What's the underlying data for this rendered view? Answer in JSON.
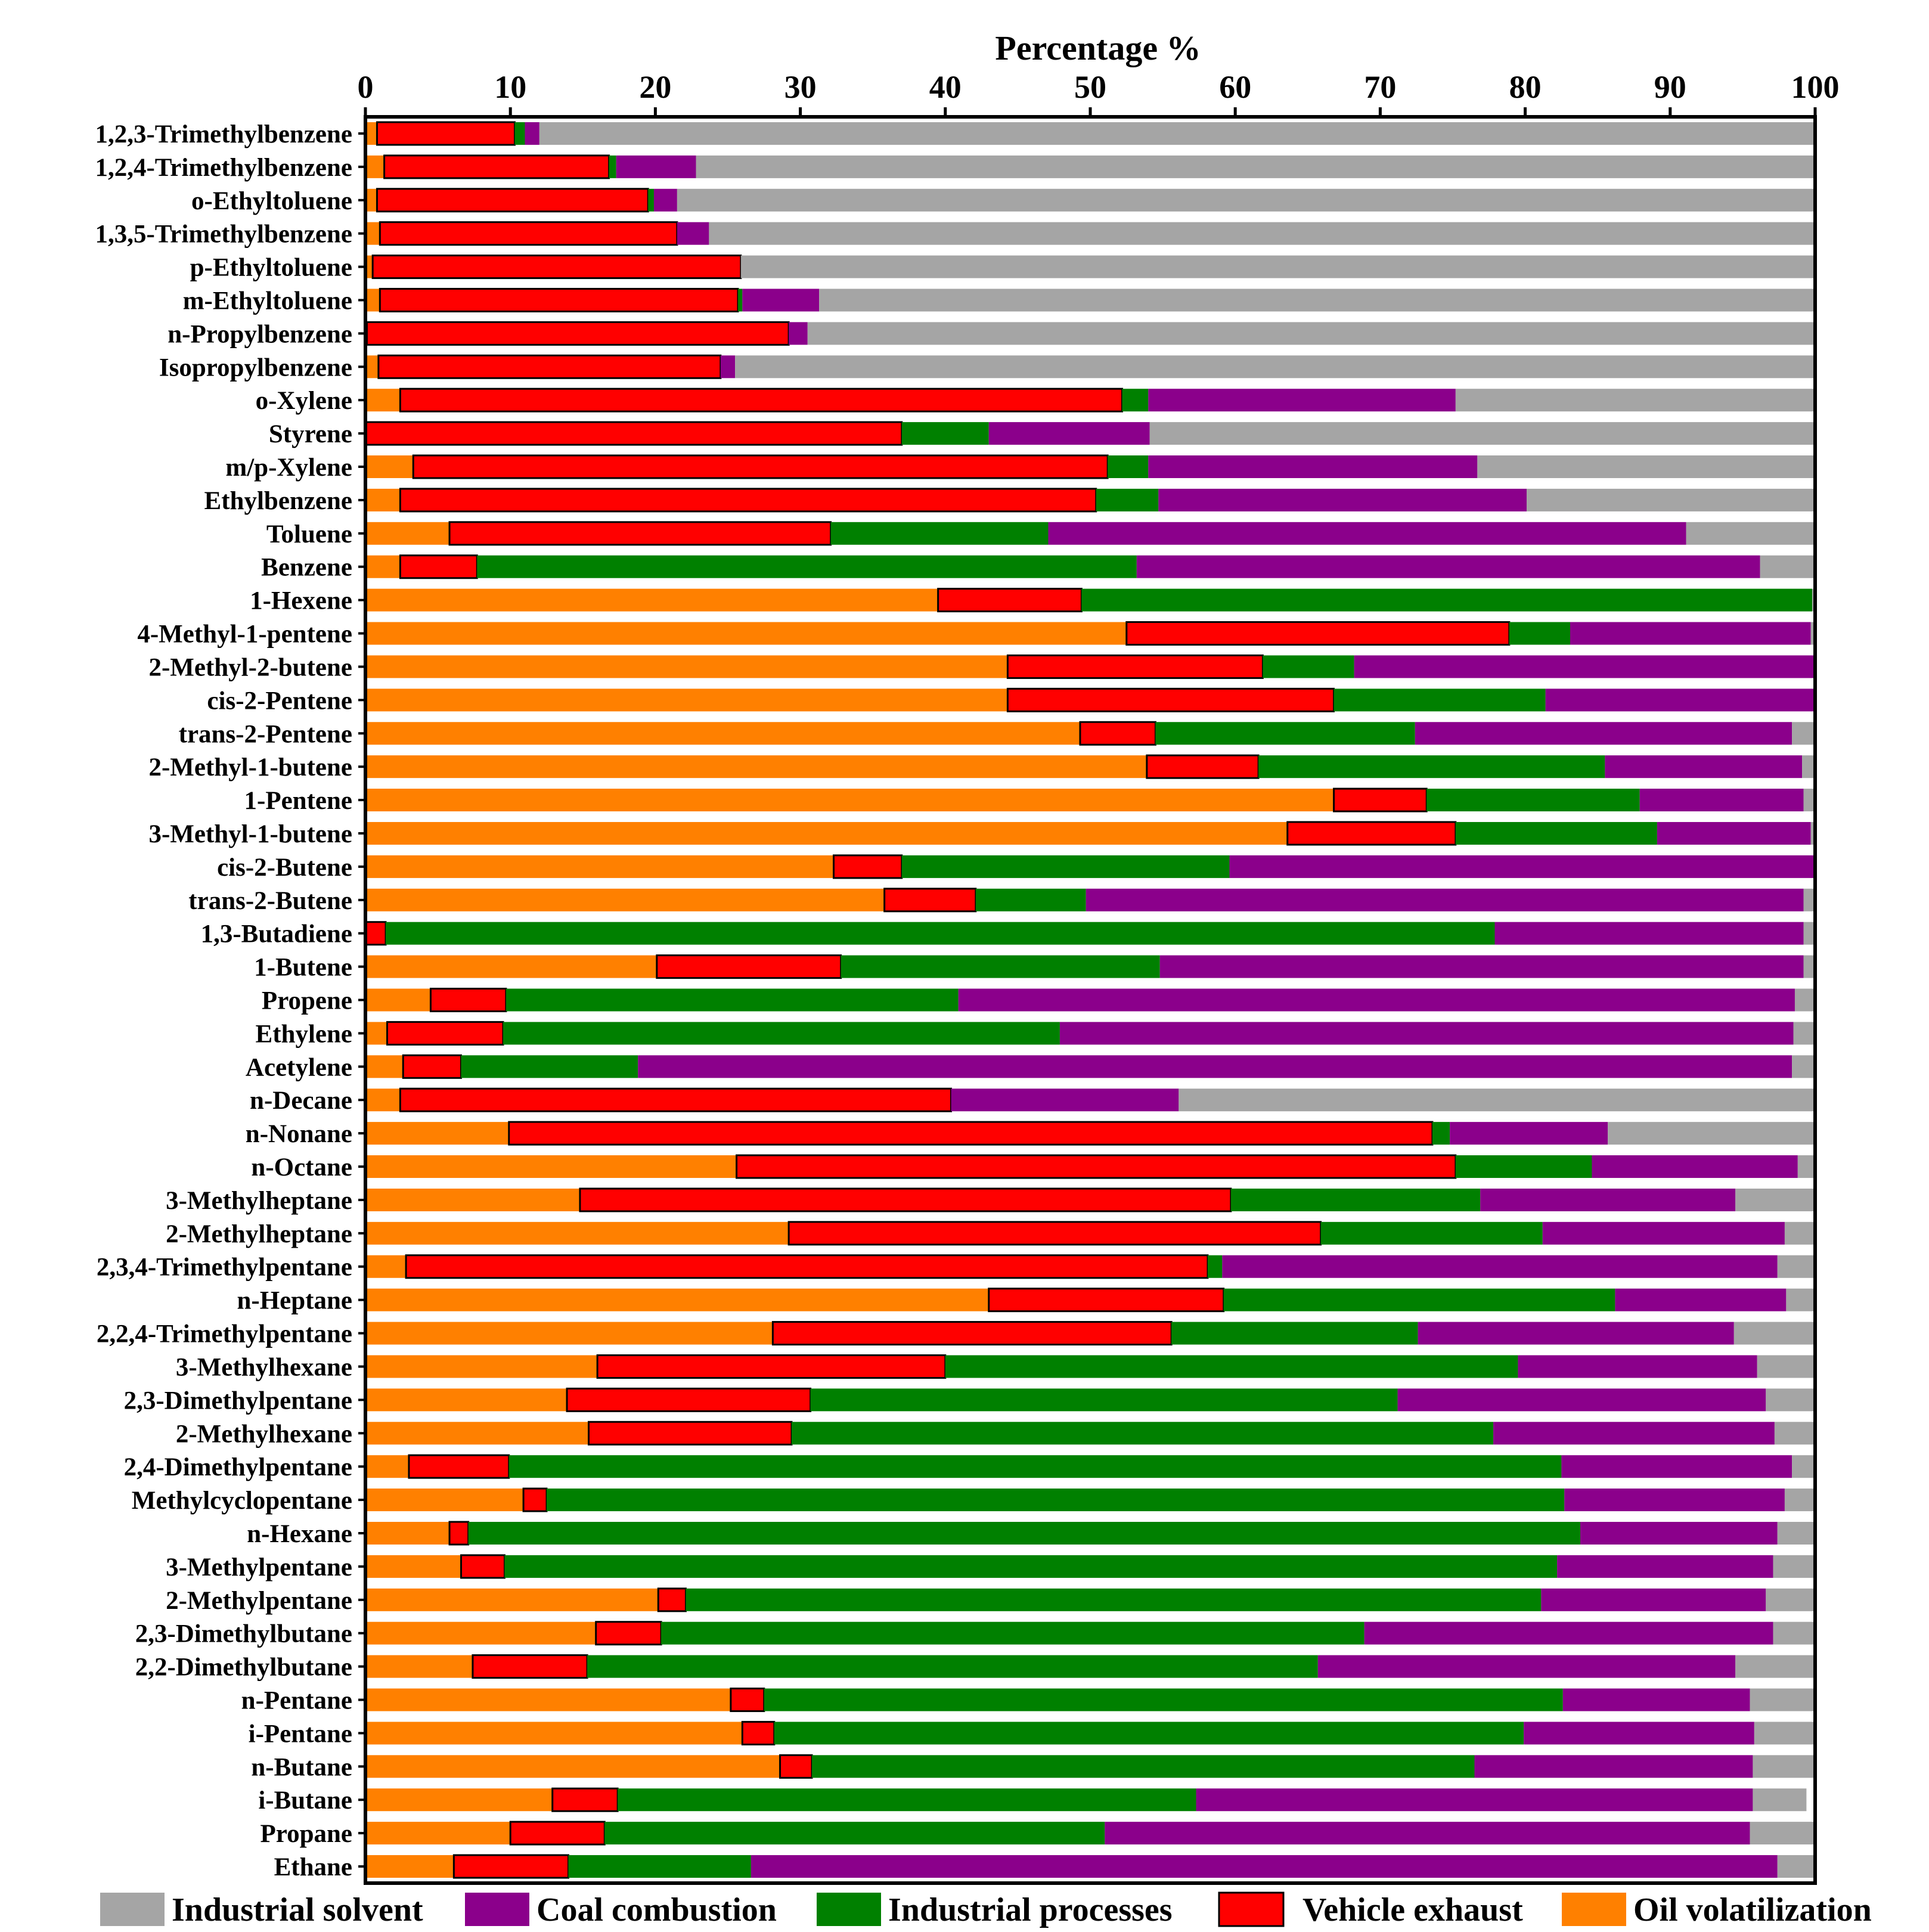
{
  "chart_data": {
    "type": "stacked-horizontal-bar",
    "xlabel": "Percentage %",
    "xlim": [
      0,
      100
    ],
    "xticks": [
      "0",
      "10",
      "20",
      "30",
      "40",
      "50",
      "60",
      "70",
      "80",
      "90",
      "100"
    ],
    "legend_position": "bottom",
    "series": [
      {
        "name": "Oil volatilization",
        "color": "#ff8000"
      },
      {
        "name": "Vehicle exhaust",
        "color": "#ff0000"
      },
      {
        "name": "Industrial processes",
        "color": "#008000"
      },
      {
        "name": "Coal combustion",
        "color": "#8b008b"
      },
      {
        "name": "Industrial solvent",
        "color": "#a5a5a5"
      }
    ],
    "legend_order": [
      "Industrial solvent",
      "Coal combustion",
      "Industrial processes",
      "Vehicle exhaust",
      "Oil volatilization"
    ],
    "categories": [
      "1,2,3-Trimethylbenzene",
      "1,2,4-Trimethylbenzene",
      "o-Ethyltoluene",
      "1,3,5-Trimethylbenzene",
      "p-Ethyltoluene",
      "m-Ethyltoluene",
      "n-Propylbenzene",
      "Isopropylbenzene",
      "o-Xylene",
      "Styrene",
      "m/p-Xylene",
      "Ethylbenzene",
      "Toluene",
      "Benzene",
      "1-Hexene",
      "4-Methyl-1-pentene",
      "2-Methyl-2-butene",
      "cis-2-Pentene",
      "trans-2-Pentene",
      "2-Methyl-1-butene",
      "1-Pentene",
      "3-Methyl-1-butene",
      "cis-2-Butene",
      "trans-2-Butene",
      "1,3-Butadiene",
      "1-Butene",
      "Propene",
      "Ethylene",
      "Acetylene",
      "n-Decane",
      "n-Nonane",
      "n-Octane",
      "3-Methylheptane",
      "2-Methylheptane",
      "2,3,4-Trimethylpentane",
      "n-Heptane",
      "2,2,4-Trimethylpentane",
      "3-Methylhexane",
      "2,3-Dimethylpentane",
      "2-Methylhexane",
      "2,4-Dimethylpentane",
      "Methylcyclopentane",
      "n-Hexane",
      "3-Methylpentane",
      "2-Methylpentane",
      "2,3-Dimethylbutane",
      "2,2-Dimethylbutane",
      "n-Pentane",
      "i-Pentane",
      "n-Butane",
      "i-Butane",
      "Propane",
      "Ethane"
    ],
    "values": [
      [
        0.8,
        9.5,
        0.7,
        1.0,
        88.0
      ],
      [
        1.3,
        15.5,
        0.5,
        5.5,
        77.2
      ],
      [
        0.8,
        18.7,
        0.4,
        1.6,
        78.5
      ],
      [
        1.0,
        20.5,
        0.0,
        2.2,
        76.3
      ],
      [
        0.5,
        25.4,
        0.0,
        0.0,
        74.1
      ],
      [
        1.0,
        24.7,
        0.3,
        5.3,
        68.7
      ],
      [
        0.1,
        29.1,
        0.0,
        1.3,
        69.5
      ],
      [
        0.9,
        23.6,
        0.0,
        1.0,
        74.5
      ],
      [
        2.4,
        49.8,
        1.8,
        21.2,
        24.8
      ],
      [
        0.0,
        37.0,
        6.0,
        11.1,
        45.9
      ],
      [
        3.3,
        47.9,
        2.8,
        22.7,
        23.3
      ],
      [
        2.4,
        48.0,
        4.3,
        25.4,
        19.9
      ],
      [
        5.8,
        26.3,
        15.0,
        44.0,
        8.9
      ],
      [
        2.4,
        5.3,
        45.5,
        43.0,
        3.8
      ],
      [
        39.5,
        9.9,
        50.4,
        0.0,
        0.2
      ],
      [
        52.5,
        26.4,
        4.2,
        16.6,
        0.3
      ],
      [
        44.3,
        17.6,
        6.3,
        31.8,
        0.0
      ],
      [
        44.3,
        22.5,
        14.6,
        18.6,
        0.0
      ],
      [
        49.3,
        5.2,
        17.9,
        26.0,
        1.6
      ],
      [
        53.9,
        7.7,
        23.9,
        13.6,
        0.9
      ],
      [
        66.8,
        6.4,
        14.7,
        11.3,
        0.8
      ],
      [
        63.6,
        11.6,
        13.9,
        10.6,
        0.3
      ],
      [
        32.3,
        4.7,
        22.6,
        40.6,
        1.8
      ],
      [
        35.8,
        6.3,
        7.6,
        49.5,
        0.8
      ],
      [
        0.0,
        1.4,
        76.5,
        21.3,
        0.8
      ],
      [
        20.1,
        12.7,
        22.0,
        44.4,
        0.8
      ],
      [
        4.5,
        5.2,
        31.2,
        57.7,
        1.4
      ],
      [
        1.5,
        8.0,
        38.4,
        50.6,
        1.5
      ],
      [
        2.6,
        4.0,
        12.2,
        79.6,
        1.6
      ],
      [
        2.4,
        38.0,
        0.0,
        15.7,
        43.9
      ],
      [
        9.9,
        63.7,
        1.2,
        10.9,
        14.3
      ],
      [
        25.6,
        49.6,
        9.4,
        14.2,
        1.2
      ],
      [
        14.8,
        44.9,
        17.2,
        17.6,
        5.5
      ],
      [
        29.2,
        36.7,
        15.3,
        16.7,
        2.1
      ],
      [
        2.8,
        55.3,
        1.0,
        38.3,
        2.6
      ],
      [
        43.0,
        16.2,
        27.0,
        11.8,
        2.0
      ],
      [
        28.1,
        27.5,
        17.0,
        21.8,
        5.6
      ],
      [
        16.0,
        24.0,
        39.5,
        16.5,
        4.0
      ],
      [
        13.9,
        16.8,
        40.5,
        25.4,
        3.4
      ],
      [
        15.4,
        14.0,
        48.4,
        19.4,
        2.8
      ],
      [
        3.0,
        6.9,
        72.6,
        15.9,
        1.6
      ],
      [
        10.9,
        1.6,
        70.2,
        15.2,
        2.1
      ],
      [
        5.8,
        1.3,
        76.7,
        13.6,
        2.6
      ],
      [
        6.6,
        3.0,
        72.6,
        14.9,
        2.9
      ],
      [
        20.2,
        1.9,
        59.0,
        15.5,
        3.4
      ],
      [
        15.9,
        4.5,
        48.5,
        28.2,
        2.9
      ],
      [
        7.4,
        7.9,
        50.4,
        28.8,
        5.5
      ],
      [
        25.2,
        2.3,
        55.1,
        12.9,
        4.5
      ],
      [
        26.0,
        2.2,
        51.7,
        15.9,
        4.2
      ],
      [
        28.6,
        2.2,
        45.7,
        19.2,
        4.3
      ],
      [
        12.9,
        4.5,
        39.9,
        38.4,
        3.7
      ],
      [
        10.0,
        6.5,
        34.5,
        44.5,
        4.5
      ],
      [
        6.1,
        7.9,
        12.6,
        70.8,
        2.6
      ]
    ]
  }
}
